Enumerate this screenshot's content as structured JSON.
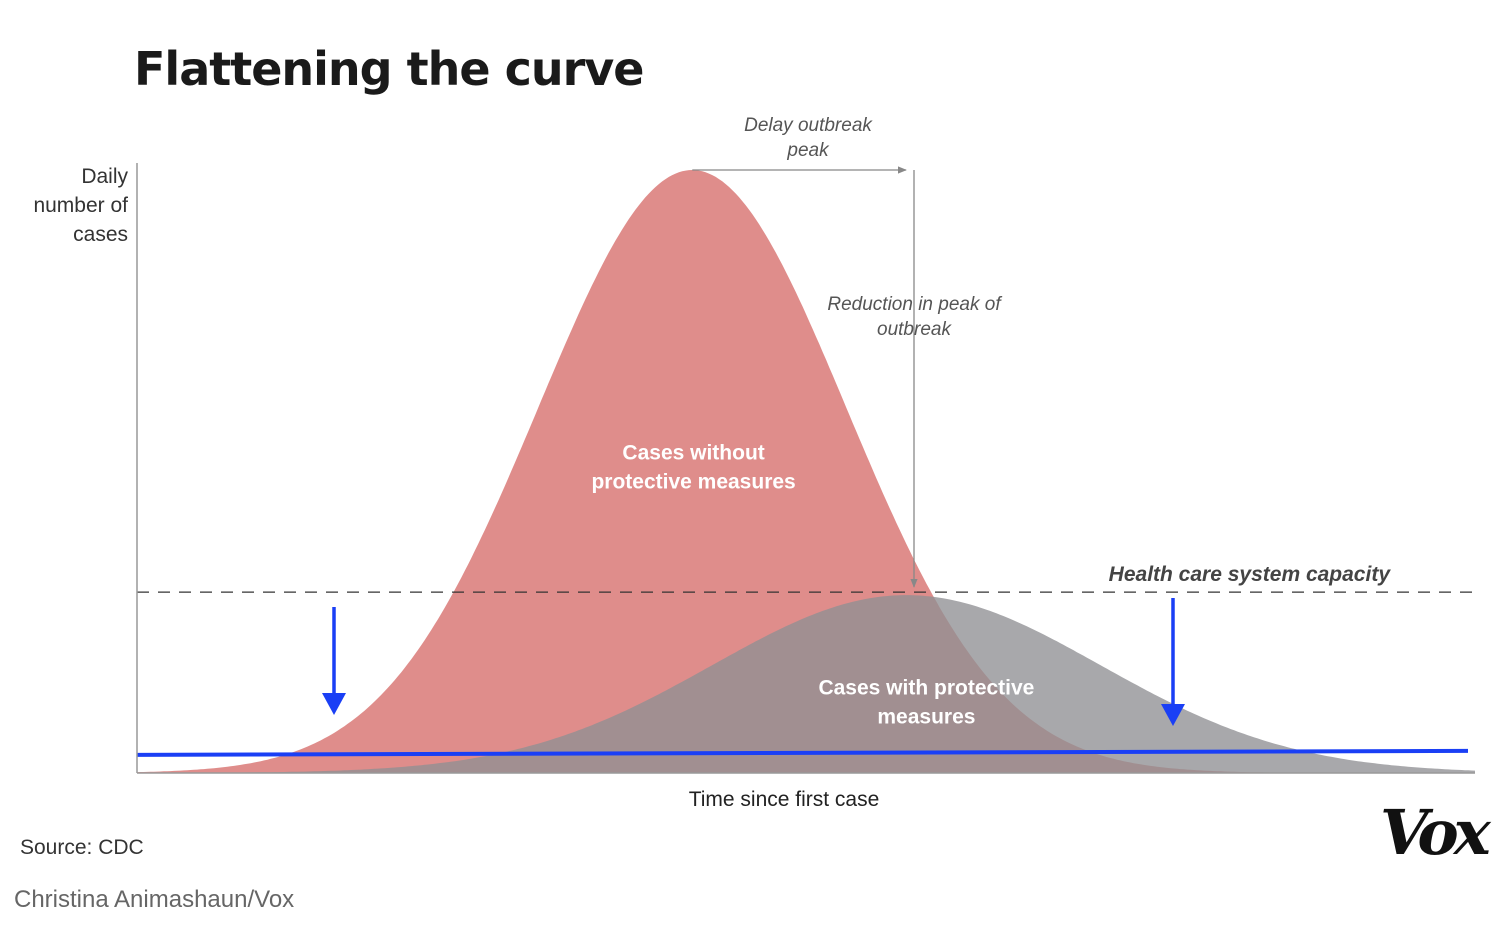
{
  "title": "Flattening the curve",
  "source": "Source: CDC",
  "credit": "Christina Animashaun/Vox",
  "logo": "Vox",
  "chart_data": {
    "type": "area",
    "title": "Flattening the curve",
    "ylabel": "Daily\nnumber of\ncases",
    "xlabel": "Time since first case",
    "x_range": [
      0,
      100
    ],
    "y_range": [
      0,
      100
    ],
    "axis_ticks": "none",
    "grid": false,
    "series": [
      {
        "name": "Cases without protective measures",
        "label": "Cases without\nprotective measures",
        "color": "#dc8381",
        "peak_x": 41.5,
        "peak_y": 100,
        "width": 11.5
      },
      {
        "name": "Cases with protective measures",
        "label": "Cases with protective\nmeasures",
        "color": "#8f8f94",
        "peak_x": 57.5,
        "peak_y": 29.5,
        "width": 14.5
      }
    ],
    "reference_lines": [
      {
        "name": "Health care system capacity",
        "label": "Health care system capacity",
        "y": 30,
        "style": "dashed",
        "color": "#333333"
      },
      {
        "name": "capacity-line",
        "y": 3.5,
        "style": "solid",
        "color": "#1a3ff5"
      }
    ],
    "annotations": [
      {
        "name": "delay-peak",
        "text": "Delay outbreak\npeak"
      },
      {
        "name": "reduction-peak",
        "text": "Reduction in peak of\noutbreak"
      }
    ]
  }
}
